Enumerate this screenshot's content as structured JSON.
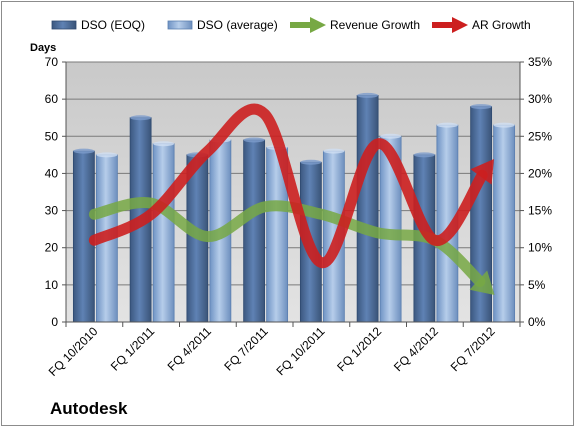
{
  "chart_data": {
    "type": "bar",
    "company": "Autodesk",
    "ylabel": "Days",
    "ylim": [
      0,
      70
    ],
    "y_ticks": [
      0,
      10,
      20,
      30,
      40,
      50,
      60,
      70
    ],
    "y2lim": [
      0,
      35
    ],
    "y2_ticks": [
      "0%",
      "5%",
      "10%",
      "15%",
      "20%",
      "25%",
      "30%",
      "35%"
    ],
    "categories": [
      "FQ 10/2010",
      "FQ 1/2011",
      "FQ 4/2011",
      "FQ 7/2011",
      "FQ 10/2011",
      "FQ 1/2012",
      "FQ 4/2012",
      "FQ 7/2012"
    ],
    "series": [
      {
        "name": "DSO (EOQ)",
        "type": "bar",
        "axis": "left",
        "values": [
          46,
          55,
          45,
          49,
          43,
          61,
          45,
          58
        ],
        "color": "#4a6a9a"
      },
      {
        "name": "DSO (average)",
        "type": "bar",
        "axis": "left",
        "values": [
          45,
          48,
          49,
          47,
          46,
          50,
          53,
          53
        ],
        "color": "#8fb2de"
      },
      {
        "name": "Revenue Growth",
        "type": "line",
        "axis": "right",
        "unit": "%",
        "values": [
          14.5,
          16,
          11.5,
          15.5,
          14.5,
          12,
          11,
          4
        ],
        "color": "#77a844"
      },
      {
        "name": "AR Growth",
        "type": "line",
        "axis": "right",
        "unit": "%",
        "values": [
          11,
          14.5,
          23,
          28,
          8,
          24,
          11,
          21.5
        ],
        "color": "#cc1f1f"
      }
    ],
    "grid": true,
    "legend": "top"
  }
}
